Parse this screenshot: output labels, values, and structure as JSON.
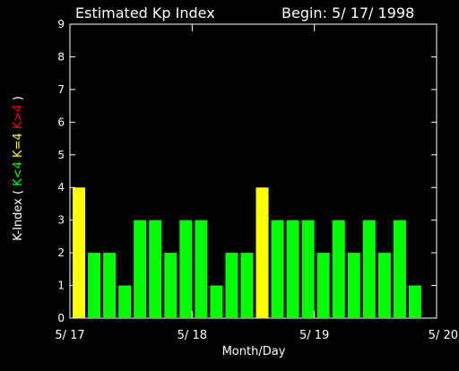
{
  "chart_data": {
    "type": "bar",
    "title": "Estimated Kp Index",
    "begin_label": "Begin: 5/ 17/ 1998",
    "xlabel": "Month/Day",
    "ylabel_parts": [
      {
        "text": "K-Index ( ",
        "color": "#ffffff"
      },
      {
        "text": "K<4",
        "color": "#00ff00"
      },
      {
        "text": " K=4",
        "color": "#ffff00"
      },
      {
        "text": " K>4",
        "color": "#ff0000"
      },
      {
        "text": " )",
        "color": "#ffffff"
      }
    ],
    "ylim": [
      0,
      9
    ],
    "yticks": [
      "0",
      "1",
      "2",
      "3",
      "4",
      "5",
      "6",
      "7",
      "8",
      "9"
    ],
    "x_ticks": [
      "5/ 17",
      "5/ 18",
      "5/ 19",
      "5/ 20"
    ],
    "bars_per_day": 8,
    "values": [
      4,
      2,
      2,
      1,
      3,
      3,
      2,
      3,
      3,
      1,
      2,
      2,
      4,
      3,
      3,
      3,
      2,
      3,
      2,
      3,
      2,
      3,
      1
    ],
    "colors": {
      "below": "#00ff00",
      "equal": "#ffff00",
      "above": "#ff0000",
      "axes": "#ffffff",
      "background": "#000000"
    }
  }
}
